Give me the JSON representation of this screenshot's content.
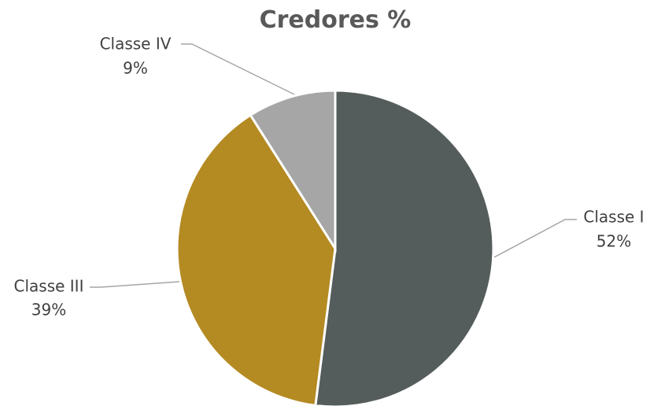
{
  "chart_data": {
    "type": "pie",
    "title": "Credores %",
    "slices": [
      {
        "name": "Classe I",
        "value": 52,
        "label": "52%",
        "color": "#555d5c"
      },
      {
        "name": "Classe III",
        "value": 39,
        "label": "39%",
        "color": "#b48a22"
      },
      {
        "name": "Classe IV",
        "value": 9,
        "label": "9%",
        "color": "#a6a6a6"
      }
    ],
    "legend": "none",
    "leader_line_color": "#a6a6a6",
    "slice_border_color": "#ffffff"
  }
}
